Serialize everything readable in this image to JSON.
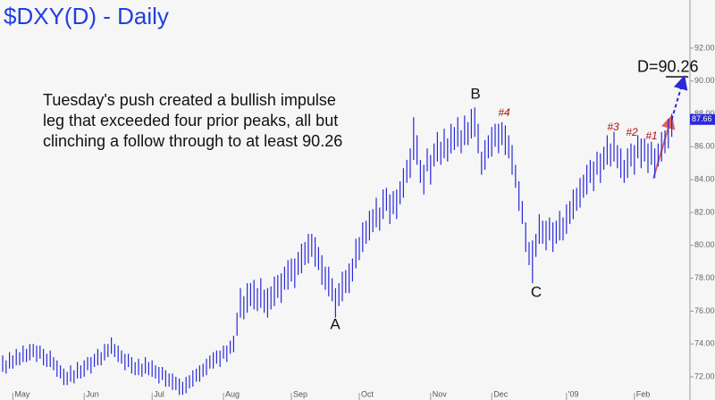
{
  "chart_data": {
    "type": "ohlc",
    "title": "$DXY(D) - Daily",
    "color": "#2a2ad8",
    "categories": [
      null,
      null,
      null,
      "May",
      null,
      null,
      null,
      null,
      null,
      null,
      null,
      null,
      null,
      null,
      null,
      null,
      null,
      null,
      null,
      null,
      null,
      null,
      null,
      null,
      "Jun",
      null,
      null,
      null,
      null,
      null,
      null,
      null,
      null,
      null,
      null,
      null,
      null,
      null,
      null,
      null,
      null,
      null,
      null,
      null,
      "Jul",
      null,
      null,
      null,
      null,
      null,
      null,
      null,
      null,
      null,
      null,
      null,
      null,
      null,
      null,
      null,
      null,
      null,
      null,
      null,
      null,
      "Aug",
      null,
      null,
      null,
      null,
      null,
      null,
      null,
      null,
      null,
      null,
      null,
      null,
      null,
      null,
      null,
      null,
      null,
      null,
      null,
      "Sep",
      null,
      null,
      null,
      null,
      null,
      null,
      null,
      null,
      null,
      null,
      null,
      null,
      null,
      null,
      null,
      null,
      null,
      null,
      null,
      "Oct",
      null,
      null,
      null,
      null,
      null,
      null,
      null,
      null,
      null,
      null,
      null,
      null,
      null,
      null,
      null,
      null,
      null,
      null,
      null,
      null,
      "Nov",
      null,
      null,
      null,
      null,
      null,
      null,
      null,
      null,
      null,
      null,
      null,
      null,
      null,
      null,
      null,
      null,
      null,
      "Dec",
      null,
      null,
      null,
      null,
      null,
      null,
      null,
      null,
      null,
      null,
      null,
      null,
      null,
      null,
      null,
      null,
      null,
      null,
      null,
      null,
      null,
      "'09",
      null,
      null,
      null,
      null,
      null,
      null,
      null,
      null,
      null,
      null,
      null,
      null,
      null,
      null,
      null,
      null,
      null,
      null,
      null,
      "Feb",
      null,
      null,
      null,
      null,
      null,
      null,
      null,
      null,
      null,
      null,
      null
    ],
    "high": [
      73.3,
      73.0,
      73.5,
      73.3,
      73.7,
      73.5,
      73.9,
      73.7,
      74.0,
      74.0,
      73.9,
      73.9,
      73.7,
      73.4,
      73.6,
      73.2,
      73.0,
      72.7,
      72.5,
      72.3,
      72.7,
      72.4,
      72.9,
      72.7,
      73.0,
      73.2,
      73.2,
      73.4,
      73.7,
      73.5,
      74.0,
      74.0,
      74.4,
      74.0,
      73.9,
      73.6,
      73.4,
      73.4,
      73.2,
      72.9,
      73.1,
      72.8,
      73.2,
      72.9,
      73.0,
      72.7,
      72.6,
      72.6,
      72.4,
      72.2,
      72.2,
      72.0,
      71.9,
      71.7,
      72.0,
      72.1,
      72.4,
      72.5,
      72.7,
      72.8,
      73.1,
      73.3,
      73.5,
      73.6,
      73.6,
      73.9,
      73.9,
      74.2,
      74.5,
      75.9,
      77.4,
      76.9,
      77.7,
      77.7,
      77.9,
      77.4,
      78.0,
      77.3,
      77.4,
      77.5,
      78.1,
      78.2,
      78.3,
      78.7,
      79.1,
      79.2,
      79.2,
      79.6,
      80.1,
      80.2,
      80.7,
      80.7,
      80.5,
      79.9,
      79.4,
      78.7,
      78.7,
      78.0,
      77.4,
      77.7,
      78.4,
      78.5,
      78.9,
      79.2,
      80.4,
      80.5,
      81.4,
      81.5,
      82.1,
      82.2,
      82.9,
      82.3,
      83.4,
      83.5,
      83.1,
      83.3,
      83.4,
      83.9,
      84.7,
      85.2,
      85.9,
      87.8,
      86.7,
      85.2,
      84.9,
      85.9,
      85.5,
      86.2,
      86.9,
      86.3,
      87.1,
      86.5,
      87.4,
      87.2,
      87.8,
      87.0,
      87.9,
      87.5,
      88.3,
      88.4,
      87.4,
      85.7,
      86.4,
      86.7,
      87.2,
      87.4,
      87.4,
      87.5,
      87.3,
      86.7,
      86.1,
      84.9,
      83.9,
      82.7,
      81.4,
      80.2,
      80.3,
      80.7,
      81.9,
      81.5,
      81.5,
      81.7,
      81.4,
      81.5,
      82.1,
      81.7,
      82.5,
      82.7,
      83.4,
      83.5,
      84.1,
      84.3,
      84.9,
      85.2,
      85.1,
      85.7,
      85.6,
      86.0,
      86.7,
      86.2,
      86.9,
      86.1,
      85.9,
      85.2,
      85.9,
      86.2,
      86.1,
      86.7,
      86.5,
      86.5,
      86.2,
      86.3,
      85.9,
      86.2,
      86.9,
      87.0,
      87.7,
      88.0
    ],
    "low": [
      72.3,
      72.2,
      72.5,
      72.5,
      72.7,
      72.7,
      72.9,
      72.9,
      73.0,
      73.2,
      72.9,
      73.1,
      72.7,
      72.6,
      72.6,
      72.4,
      72.0,
      71.9,
      71.5,
      71.5,
      71.7,
      71.6,
      71.9,
      71.9,
      72.0,
      72.4,
      72.2,
      72.6,
      72.7,
      72.7,
      73.0,
      73.2,
      73.4,
      73.2,
      72.9,
      72.8,
      72.4,
      72.6,
      72.2,
      72.1,
      72.1,
      72.0,
      72.2,
      72.1,
      72.0,
      71.9,
      71.6,
      71.8,
      71.4,
      71.4,
      71.2,
      71.2,
      70.9,
      70.9,
      71.0,
      71.3,
      71.4,
      71.7,
      71.7,
      72.0,
      72.1,
      72.5,
      72.5,
      72.8,
      72.6,
      73.1,
      72.9,
      73.4,
      73.5,
      74.5,
      75.6,
      75.5,
      75.9,
      76.3,
      76.1,
      76.0,
      76.2,
      75.9,
      75.6,
      76.1,
      76.3,
      76.8,
      76.5,
      77.3,
      77.3,
      77.8,
      77.4,
      78.2,
      78.3,
      78.8,
      78.9,
      79.3,
      78.7,
      78.5,
      77.6,
      77.3,
      76.9,
      76.6,
      75.6,
      76.3,
      76.6,
      77.1,
      77.1,
      77.8,
      78.6,
      79.1,
      79.6,
      80.1,
      80.3,
      80.8,
      81.1,
      80.9,
      81.6,
      82.1,
      81.3,
      81.9,
      81.6,
      82.5,
      82.9,
      83.8,
      84.1,
      85.2,
      84.9,
      83.8,
      83.1,
      84.5,
      83.7,
      84.8,
      85.1,
      84.9,
      85.3,
      85.1,
      85.6,
      85.8,
      86.0,
      85.6,
      86.1,
      86.1,
      86.5,
      86.6,
      85.6,
      84.3,
      84.6,
      85.3,
      85.4,
      86.0,
      85.6,
      86.1,
      85.5,
      85.3,
      84.3,
      83.5,
      82.1,
      81.3,
      79.6,
      78.8,
      77.7,
      79.3,
      80.1,
      80.1,
      79.7,
      80.3,
      79.6,
      80.1,
      80.3,
      80.3,
      80.7,
      81.3,
      81.6,
      82.1,
      82.3,
      82.9,
      83.1,
      83.8,
      83.3,
      84.3,
      83.8,
      84.6,
      84.9,
      84.8,
      85.1,
      84.7,
      84.1,
      83.8,
      84.1,
      84.8,
      84.3,
      85.3,
      84.7,
      85.1,
      84.4,
      84.9,
      84.1,
      84.8,
      85.1,
      85.6,
      85.9,
      86.6
    ],
    "last_value": 87.66,
    "ylim": [
      70.59,
      94.93
    ],
    "yticks": [
      {
        "value": 72,
        "label": "72.00"
      },
      {
        "value": 74,
        "label": "74.00"
      },
      {
        "value": 76,
        "label": "76.00"
      },
      {
        "value": 78,
        "label": "78.00"
      },
      {
        "value": 80,
        "label": "80.00"
      },
      {
        "value": 82,
        "label": "82.00"
      },
      {
        "value": 84,
        "label": "84.00"
      },
      {
        "value": 86,
        "label": "86.00"
      },
      {
        "value": 88,
        "label": "88.00"
      },
      {
        "value": 90,
        "label": "90.00"
      },
      {
        "value": 92,
        "label": "92.00"
      }
    ],
    "grid": false,
    "annotations": {
      "text": [
        "Tuesday's push created a bullish impulse",
        "leg that exceeded four prior peaks, all but",
        "clinching a follow through to at least 90.26"
      ],
      "points": [
        "A",
        "B",
        "C"
      ],
      "peaks": [
        "#4",
        "#3",
        "#2",
        "#1"
      ],
      "target": {
        "label": "D=90.26",
        "value": 90.26
      }
    }
  }
}
